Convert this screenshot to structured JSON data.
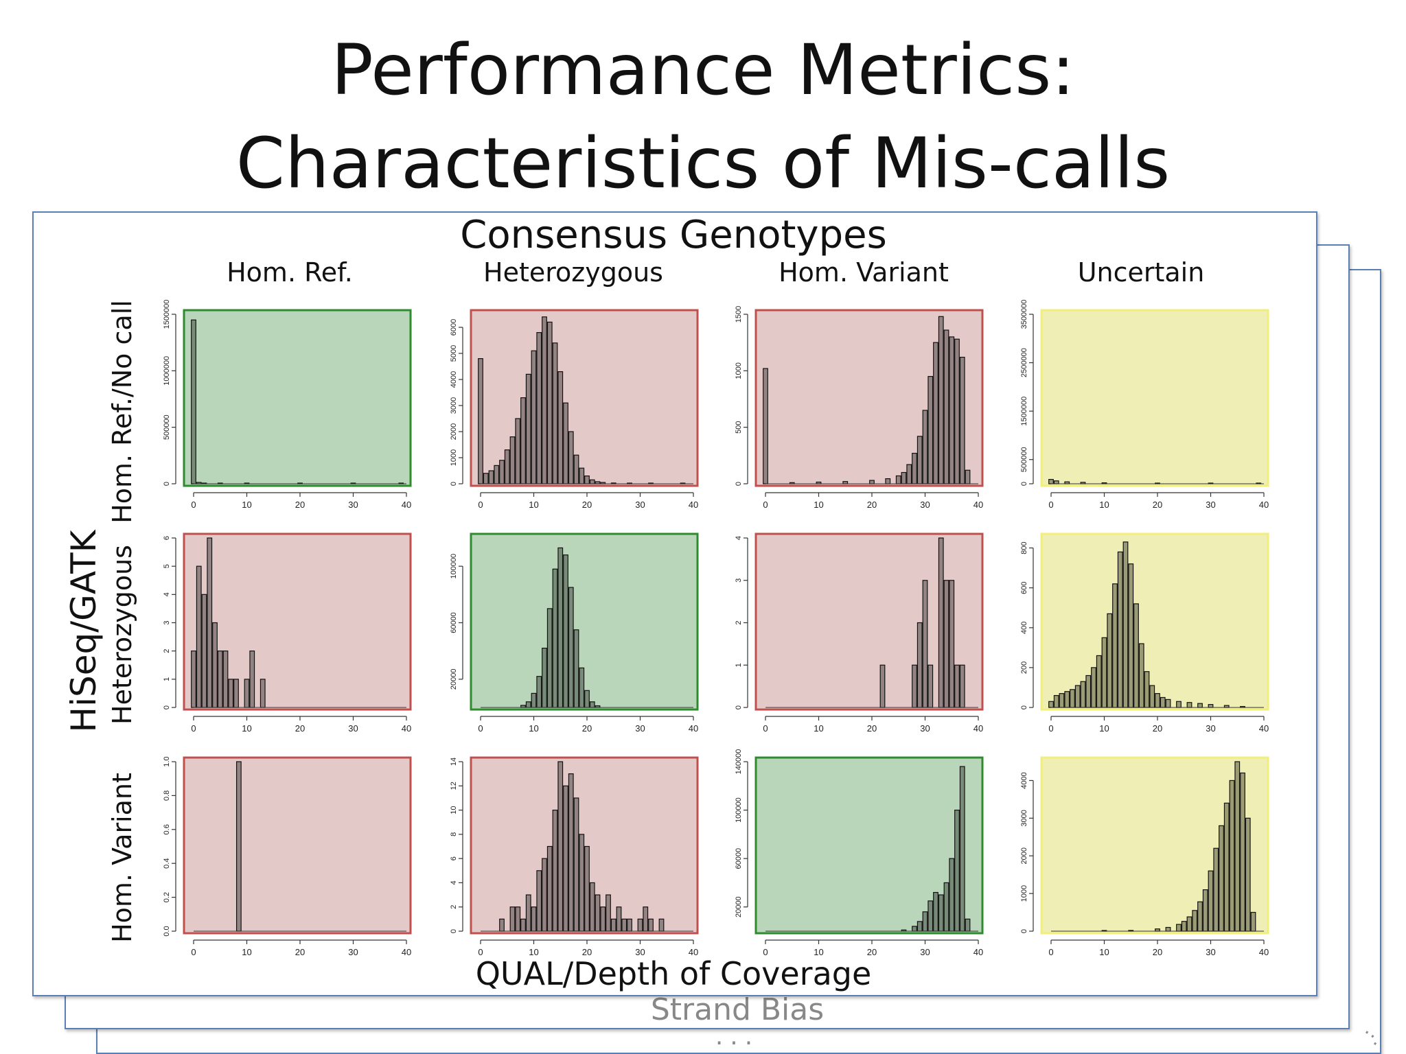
{
  "title": {
    "line1": "Performance Metrics:",
    "line2": "Characteristics of Mis-calls"
  },
  "consensus_label": "Consensus Genotypes",
  "column_headers": [
    "Hom. Ref.",
    "Heterozygous",
    "Hom. Variant",
    "Uncertain"
  ],
  "row_group_label": "HiSeq/GATK",
  "row_headers": [
    "Hom. Ref./No call",
    "Heterozygous",
    "Hom. Variant"
  ],
  "x_axis_label": "QUAL/Depth of Coverage",
  "stack_labels": {
    "next_card": "Strand Bias",
    "more": "...",
    "corner": "··."
  },
  "colors": {
    "green": "#b9d6bb",
    "green_border": "#2e8b2e",
    "red": "#e4c9c9",
    "red_border": "#c0504d",
    "yellow": "#eeeeb5",
    "yellow_border": "#f1ee7a",
    "bar": "#111111"
  },
  "chart_data": [
    {
      "type": "bar",
      "row": "Hom. Ref./No call",
      "column": "Hom. Ref.",
      "panel": "green",
      "xlim": [
        0,
        40
      ],
      "xticks": [
        0,
        10,
        20,
        30,
        40
      ],
      "ylim": [
        0,
        1500000
      ],
      "yticks": [
        "0",
        "500000",
        "1000000",
        "1500000"
      ],
      "ytick_values": [
        0,
        500000,
        1000000,
        1500000
      ],
      "x": [
        0,
        1,
        2,
        5,
        10,
        20,
        30,
        39
      ],
      "values": [
        1450000,
        12000,
        6000,
        3000,
        1500,
        800,
        400,
        300
      ]
    },
    {
      "type": "bar",
      "row": "Hom. Ref./No call",
      "column": "Heterozygous",
      "panel": "red",
      "xlim": [
        0,
        40
      ],
      "xticks": [
        0,
        10,
        20,
        30,
        40
      ],
      "ylim": [
        0,
        6500
      ],
      "yticks": [
        "0",
        "1000",
        "2000",
        "3000",
        "4000",
        "5000",
        "6000"
      ],
      "ytick_values": [
        0,
        1000,
        2000,
        3000,
        4000,
        5000,
        6000
      ],
      "x": [
        0,
        1,
        2,
        3,
        4,
        5,
        6,
        7,
        8,
        9,
        10,
        11,
        12,
        13,
        14,
        15,
        16,
        17,
        18,
        19,
        20,
        21,
        22,
        23,
        25,
        28,
        32,
        38
      ],
      "values": [
        4800,
        400,
        500,
        700,
        900,
        1300,
        1800,
        2500,
        3300,
        4200,
        5100,
        5800,
        6400,
        6200,
        5400,
        4300,
        3100,
        2000,
        1100,
        600,
        300,
        150,
        80,
        50,
        30,
        20,
        15,
        10
      ]
    },
    {
      "type": "bar",
      "row": "Hom. Ref./No call",
      "column": "Hom. Variant",
      "panel": "red",
      "xlim": [
        0,
        40
      ],
      "xticks": [
        0,
        10,
        20,
        30,
        40
      ],
      "ylim": [
        0,
        1500
      ],
      "yticks": [
        "0",
        "500",
        "1000",
        "1500"
      ],
      "ytick_values": [
        0,
        500,
        1000,
        1500
      ],
      "x": [
        0,
        5,
        10,
        15,
        20,
        23,
        25,
        26,
        27,
        28,
        29,
        30,
        31,
        32,
        33,
        34,
        35,
        36,
        37,
        38
      ],
      "values": [
        1020,
        10,
        15,
        20,
        30,
        45,
        70,
        100,
        170,
        270,
        420,
        650,
        950,
        1250,
        1480,
        1360,
        1300,
        1280,
        1120,
        120
      ]
    },
    {
      "type": "bar",
      "row": "Hom. Ref./No call",
      "column": "Uncertain",
      "panel": "yellow",
      "xlim": [
        0,
        40
      ],
      "xticks": [
        0,
        10,
        20,
        30,
        40
      ],
      "ylim": [
        0,
        3500000
      ],
      "yticks": [
        "0",
        "500000",
        "1500000",
        "2500000",
        "3500000"
      ],
      "ytick_values": [
        0,
        500000,
        1500000,
        2500000,
        3500000
      ],
      "x": [
        0,
        1,
        3,
        6,
        10,
        20,
        30,
        39
      ],
      "values": [
        90000,
        60000,
        40000,
        30000,
        20000,
        12000,
        8000,
        5000
      ]
    },
    {
      "type": "bar",
      "row": "Heterozygous",
      "column": "Hom. Ref.",
      "panel": "red",
      "xlim": [
        0,
        40
      ],
      "xticks": [
        0,
        10,
        20,
        30,
        40
      ],
      "ylim": [
        0,
        6
      ],
      "yticks": [
        "0",
        "1",
        "2",
        "3",
        "4",
        "5",
        "6"
      ],
      "ytick_values": [
        0,
        1,
        2,
        3,
        4,
        5,
        6
      ],
      "x": [
        0,
        1,
        2,
        3,
        4,
        5,
        6,
        7,
        8,
        10,
        11,
        13
      ],
      "values": [
        2,
        5,
        4,
        6,
        3,
        2,
        2,
        1,
        1,
        1,
        2,
        1
      ]
    },
    {
      "type": "bar",
      "row": "Heterozygous",
      "column": "Heterozygous",
      "panel": "green",
      "xlim": [
        0,
        40
      ],
      "xticks": [
        0,
        10,
        20,
        30,
        40
      ],
      "ylim": [
        0,
        120000
      ],
      "yticks": [
        "20000",
        "60000",
        "100000"
      ],
      "ytick_values": [
        20000,
        60000,
        100000
      ],
      "x": [
        8,
        9,
        10,
        11,
        12,
        13,
        14,
        15,
        16,
        17,
        18,
        19,
        20,
        21,
        22
      ],
      "values": [
        1500,
        4000,
        10000,
        22000,
        42000,
        70000,
        98000,
        113000,
        108000,
        85000,
        55000,
        28000,
        12000,
        4000,
        1200
      ]
    },
    {
      "type": "bar",
      "row": "Heterozygous",
      "column": "Hom. Variant",
      "panel": "red",
      "xlim": [
        0,
        40
      ],
      "xticks": [
        0,
        10,
        20,
        30,
        40
      ],
      "ylim": [
        0,
        4
      ],
      "yticks": [
        "0",
        "1",
        "2",
        "3",
        "4"
      ],
      "ytick_values": [
        0,
        1,
        2,
        3,
        4
      ],
      "x": [
        22,
        28,
        29,
        30,
        31,
        33,
        34,
        35,
        36,
        37
      ],
      "values": [
        1,
        1,
        2,
        3,
        1,
        4,
        3,
        3,
        1,
        1
      ]
    },
    {
      "type": "bar",
      "row": "Heterozygous",
      "column": "Uncertain",
      "panel": "yellow",
      "xlim": [
        0,
        40
      ],
      "xticks": [
        0,
        10,
        20,
        30,
        40
      ],
      "ylim": [
        0,
        850
      ],
      "yticks": [
        "0",
        "200",
        "400",
        "600",
        "800"
      ],
      "ytick_values": [
        0,
        200,
        400,
        600,
        800
      ],
      "x": [
        0,
        1,
        2,
        3,
        4,
        5,
        6,
        7,
        8,
        9,
        10,
        11,
        12,
        13,
        14,
        15,
        16,
        17,
        18,
        19,
        20,
        21,
        22,
        24,
        26,
        28,
        30,
        33,
        36
      ],
      "values": [
        30,
        60,
        70,
        80,
        90,
        110,
        130,
        160,
        200,
        260,
        350,
        470,
        620,
        780,
        830,
        720,
        520,
        320,
        180,
        110,
        70,
        50,
        40,
        30,
        25,
        20,
        15,
        10,
        5
      ]
    },
    {
      "type": "bar",
      "row": "Hom. Variant",
      "column": "Hom. Ref.",
      "panel": "red",
      "xlim": [
        0,
        40
      ],
      "xticks": [
        0,
        10,
        20,
        30,
        40
      ],
      "ylim": [
        0,
        1.0
      ],
      "yticks": [
        "0.0",
        "0.2",
        "0.4",
        "0.6",
        "0.8",
        "1.0"
      ],
      "ytick_values": [
        0,
        0.2,
        0.4,
        0.6,
        0.8,
        1.0
      ],
      "x": [
        8.5
      ],
      "values": [
        1.0
      ]
    },
    {
      "type": "bar",
      "row": "Hom. Variant",
      "column": "Heterozygous",
      "panel": "red",
      "xlim": [
        0,
        40
      ],
      "xticks": [
        0,
        10,
        20,
        30,
        40
      ],
      "ylim": [
        0,
        14
      ],
      "yticks": [
        "0",
        "2",
        "4",
        "6",
        "8",
        "10",
        "12",
        "14"
      ],
      "ytick_values": [
        0,
        2,
        4,
        6,
        8,
        10,
        12,
        14
      ],
      "x": [
        4,
        6,
        7,
        8,
        9,
        10,
        11,
        12,
        13,
        14,
        15,
        16,
        17,
        18,
        19,
        20,
        21,
        22,
        23,
        24,
        25,
        26,
        27,
        28,
        30,
        31,
        32,
        34
      ],
      "values": [
        1,
        2,
        2,
        1,
        3,
        2,
        5,
        6,
        7,
        10,
        14,
        12,
        13,
        11,
        8,
        7,
        4,
        3,
        2,
        3,
        1,
        2,
        1,
        1,
        1,
        2,
        1,
        1
      ]
    },
    {
      "type": "bar",
      "row": "Hom. Variant",
      "column": "Hom. Variant",
      "panel": "green",
      "xlim": [
        0,
        40
      ],
      "xticks": [
        0,
        10,
        20,
        30,
        40
      ],
      "ylim": [
        0,
        140000
      ],
      "yticks": [
        "20000",
        "60000",
        "100000",
        "140000"
      ],
      "ytick_values": [
        20000,
        60000,
        100000,
        140000
      ],
      "x": [
        26,
        28,
        29,
        30,
        31,
        32,
        33,
        34,
        35,
        36,
        37,
        38
      ],
      "values": [
        1000,
        4000,
        8000,
        16000,
        25000,
        32000,
        30000,
        40000,
        60000,
        100000,
        136000,
        10000
      ]
    },
    {
      "type": "bar",
      "row": "Hom. Variant",
      "column": "Uncertain",
      "panel": "yellow",
      "xlim": [
        0,
        40
      ],
      "xticks": [
        0,
        10,
        20,
        30,
        40
      ],
      "ylim": [
        0,
        4500
      ],
      "yticks": [
        "0",
        "1000",
        "2000",
        "3000",
        "4000"
      ],
      "ytick_values": [
        0,
        1000,
        2000,
        3000,
        4000
      ],
      "x": [
        10,
        15,
        20,
        22,
        24,
        25,
        26,
        27,
        28,
        29,
        30,
        31,
        32,
        33,
        34,
        35,
        36,
        37,
        38
      ],
      "values": [
        10,
        20,
        60,
        100,
        180,
        260,
        380,
        550,
        780,
        1100,
        1600,
        2200,
        2800,
        3400,
        4000,
        4500,
        4200,
        3000,
        500
      ]
    }
  ]
}
